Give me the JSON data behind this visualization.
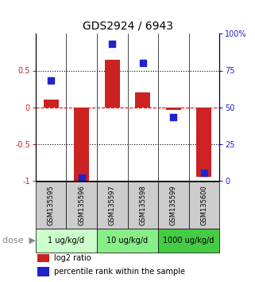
{
  "title": "GDS2924 / 6943",
  "samples": [
    "GSM135595",
    "GSM135596",
    "GSM135597",
    "GSM135598",
    "GSM135599",
    "GSM135600"
  ],
  "log2_ratio": [
    0.1,
    -1.0,
    0.65,
    0.2,
    -0.04,
    -0.95
  ],
  "percentile_rank": [
    68,
    2,
    93,
    80,
    43,
    5
  ],
  "dose_groups": [
    {
      "label": "1 ug/kg/d",
      "samples": [
        0,
        1
      ],
      "color": "#ccffcc"
    },
    {
      "label": "10 ug/kg/d",
      "samples": [
        2,
        3
      ],
      "color": "#88ee88"
    },
    {
      "label": "1000 ug/kg/d",
      "samples": [
        4,
        5
      ],
      "color": "#44cc44"
    }
  ],
  "bar_color": "#cc2222",
  "dot_color": "#2222cc",
  "bar_width": 0.5,
  "dot_size": 40,
  "ylim_left": [
    -1.0,
    1.0
  ],
  "ylim_right": [
    0,
    100
  ],
  "yticks_left": [
    -1.0,
    -0.5,
    0.0,
    0.5
  ],
  "ytick_labels_left": [
    "-1",
    "-0.5",
    "0",
    "0.5"
  ],
  "yticks_right": [
    0,
    25,
    50,
    75,
    100
  ],
  "ytick_labels_right": [
    "0",
    "25",
    "50",
    "75",
    "100%"
  ],
  "hlines_dotted": [
    -0.5,
    0.5
  ],
  "legend_items": [
    {
      "label": "log2 ratio",
      "color": "#cc2222"
    },
    {
      "label": "percentile rank within the sample",
      "color": "#2222cc"
    }
  ],
  "sample_box_color": "#cccccc",
  "title_fontsize": 10,
  "tick_fontsize": 7,
  "sample_fontsize": 6,
  "dose_fontsize": 7,
  "legend_fontsize": 7
}
